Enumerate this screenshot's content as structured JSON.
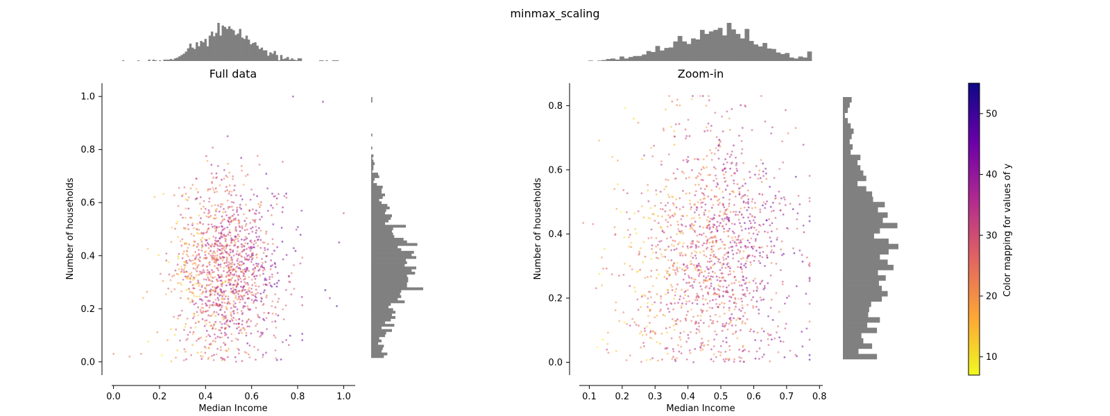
{
  "figure": {
    "title": "minmax_scaling"
  },
  "chart_data": [
    {
      "type": "scatter",
      "title": "Full data",
      "xlabel": "Median Income",
      "ylabel": "Number of households",
      "xlim": [
        -0.05,
        1.05
      ],
      "ylim": [
        -0.05,
        1.05
      ],
      "xticks": [
        "0.0",
        "0.2",
        "0.4",
        "0.6",
        "0.8",
        "1.0"
      ],
      "yticks": [
        "0.0",
        "0.2",
        "0.4",
        "0.6",
        "0.8",
        "1.0"
      ],
      "grid": false,
      "marginal_histograms": {
        "top": "x distribution",
        "right": "y distribution",
        "color": "#808080"
      },
      "point_color_map": "plasma_r",
      "cluster": {
        "x_mean": 0.49,
        "x_sd": 0.12,
        "y_mean": 0.34,
        "y_sd": 0.17,
        "y_max": 0.85
      },
      "outliers": [
        {
          "x": 0.78,
          "y": 1.0
        },
        {
          "x": 0.91,
          "y": 0.98
        },
        {
          "x": 1.0,
          "y": 0.56
        },
        {
          "x": 0.98,
          "y": 0.45
        },
        {
          "x": 0.94,
          "y": 0.24
        },
        {
          "x": 0.97,
          "y": 0.21
        },
        {
          "x": 0.92,
          "y": 0.27
        },
        {
          "x": 0.0,
          "y": 0.03
        },
        {
          "x": 0.07,
          "y": 0.02
        },
        {
          "x": 0.12,
          "y": 0.03
        }
      ]
    },
    {
      "type": "scatter",
      "title": "Zoom-in",
      "xlabel": "Median Income",
      "ylabel": "Number of households",
      "xlim": [
        0.04,
        0.81
      ],
      "ylim": [
        -0.04,
        0.87
      ],
      "xticks": [
        "0.1",
        "0.2",
        "0.3",
        "0.4",
        "0.5",
        "0.6",
        "0.7",
        "0.8"
      ],
      "yticks": [
        "0.0",
        "0.2",
        "0.4",
        "0.6",
        "0.8"
      ],
      "grid": false,
      "marginal_histograms": {
        "top": "x distribution",
        "right": "y distribution",
        "color": "#808080"
      },
      "point_color_map": "plasma_r",
      "cluster": {
        "x_min": 0.07,
        "x_max": 0.77,
        "y_min": 0.0,
        "y_max": 0.83
      }
    }
  ],
  "colorbar": {
    "label": "Color mapping for values of y",
    "range": [
      7,
      55
    ],
    "ticks": [
      "10",
      "20",
      "30",
      "40",
      "50"
    ],
    "colormap": "plasma_r",
    "colors": [
      "#f0f921",
      "#fca636",
      "#e16462",
      "#b12a90",
      "#6a00a8",
      "#0d0887"
    ]
  }
}
